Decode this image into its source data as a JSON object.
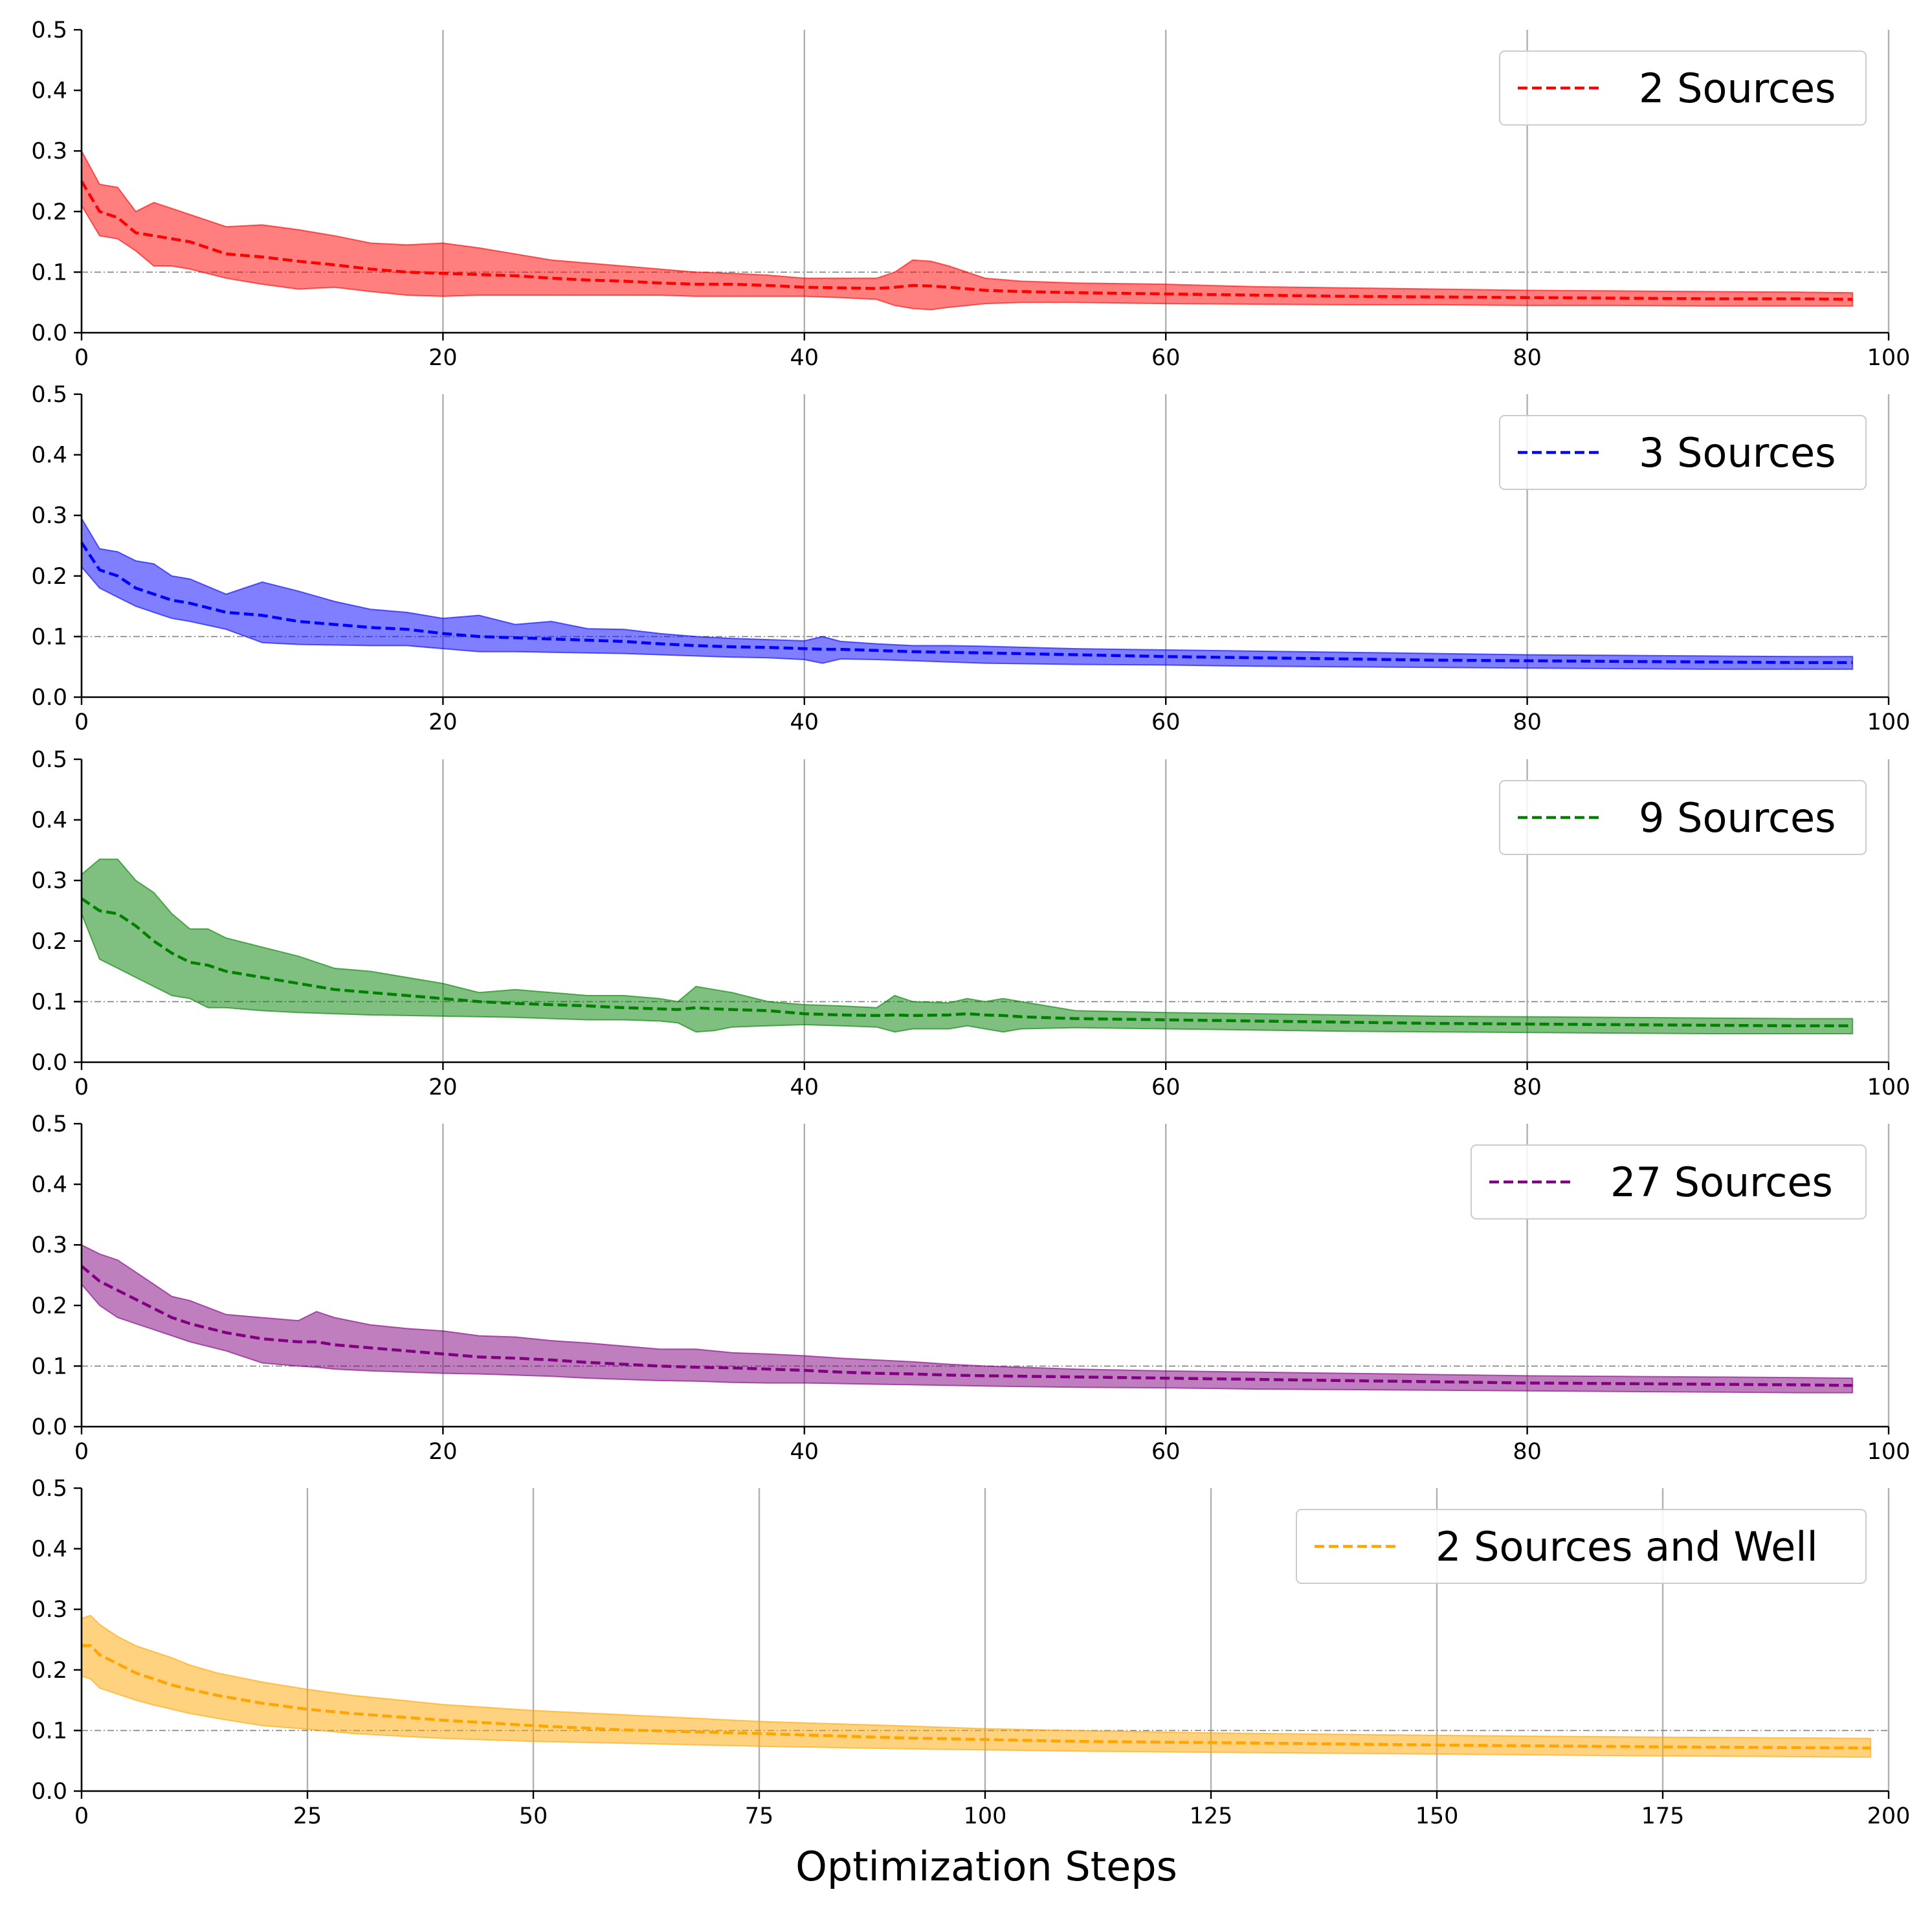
{
  "figure": {
    "xlabel": "Optimization Steps"
  },
  "reference_line": 0.1,
  "chart_data": [
    {
      "type": "line",
      "series_name": "2 Sources",
      "color": "#ff0000",
      "xlim": [
        0,
        100
      ],
      "ylim": [
        0,
        0.5
      ],
      "xticks": [
        0,
        20,
        40,
        60,
        80,
        100
      ],
      "yticks": [
        0.0,
        0.1,
        0.2,
        0.3,
        0.4,
        0.5
      ],
      "xtick_labels": [
        "0",
        "20",
        "40",
        "60",
        "80",
        "100"
      ],
      "ytick_labels": [
        "0.0",
        "0.1",
        "0.2",
        "0.3",
        "0.4",
        "0.5"
      ],
      "x": [
        0,
        1,
        2,
        3,
        4,
        5,
        6,
        8,
        10,
        12,
        14,
        16,
        18,
        20,
        22,
        24,
        26,
        28,
        30,
        32,
        34,
        36,
        38,
        40,
        42,
        44,
        45,
        46,
        47,
        48,
        50,
        52,
        55,
        60,
        65,
        70,
        75,
        80,
        85,
        90,
        95,
        98
      ],
      "mean": [
        0.25,
        0.2,
        0.19,
        0.165,
        0.16,
        0.155,
        0.15,
        0.13,
        0.125,
        0.118,
        0.112,
        0.105,
        0.1,
        0.098,
        0.096,
        0.094,
        0.09,
        0.087,
        0.085,
        0.082,
        0.08,
        0.08,
        0.078,
        0.075,
        0.074,
        0.073,
        0.075,
        0.078,
        0.077,
        0.075,
        0.07,
        0.068,
        0.066,
        0.064,
        0.062,
        0.06,
        0.059,
        0.058,
        0.057,
        0.056,
        0.056,
        0.055
      ],
      "upper": [
        0.3,
        0.245,
        0.24,
        0.2,
        0.215,
        0.205,
        0.195,
        0.175,
        0.178,
        0.17,
        0.16,
        0.148,
        0.145,
        0.148,
        0.14,
        0.13,
        0.12,
        0.115,
        0.11,
        0.105,
        0.1,
        0.098,
        0.095,
        0.09,
        0.09,
        0.09,
        0.1,
        0.12,
        0.118,
        0.11,
        0.09,
        0.085,
        0.082,
        0.08,
        0.076,
        0.074,
        0.072,
        0.07,
        0.069,
        0.068,
        0.067,
        0.066
      ],
      "lower": [
        0.21,
        0.16,
        0.155,
        0.135,
        0.11,
        0.11,
        0.105,
        0.09,
        0.08,
        0.072,
        0.075,
        0.068,
        0.062,
        0.06,
        0.062,
        0.062,
        0.062,
        0.062,
        0.062,
        0.062,
        0.06,
        0.06,
        0.06,
        0.06,
        0.058,
        0.055,
        0.045,
        0.04,
        0.038,
        0.042,
        0.048,
        0.05,
        0.05,
        0.048,
        0.047,
        0.046,
        0.046,
        0.045,
        0.045,
        0.044,
        0.044,
        0.044
      ]
    },
    {
      "type": "line",
      "series_name": "3 Sources",
      "color": "#0000ff",
      "xlim": [
        0,
        100
      ],
      "ylim": [
        0,
        0.5
      ],
      "xticks": [
        0,
        20,
        40,
        60,
        80,
        100
      ],
      "yticks": [
        0.0,
        0.1,
        0.2,
        0.3,
        0.4,
        0.5
      ],
      "xtick_labels": [
        "0",
        "20",
        "40",
        "60",
        "80",
        "100"
      ],
      "ytick_labels": [
        "0.0",
        "0.1",
        "0.2",
        "0.3",
        "0.4",
        "0.5"
      ],
      "x": [
        0,
        1,
        2,
        3,
        4,
        5,
        6,
        8,
        10,
        12,
        14,
        16,
        18,
        20,
        22,
        24,
        26,
        28,
        30,
        32,
        34,
        36,
        38,
        40,
        41,
        42,
        44,
        46,
        48,
        50,
        55,
        60,
        65,
        70,
        75,
        80,
        85,
        90,
        95,
        98
      ],
      "mean": [
        0.255,
        0.21,
        0.2,
        0.18,
        0.17,
        0.16,
        0.155,
        0.14,
        0.135,
        0.125,
        0.12,
        0.115,
        0.112,
        0.105,
        0.1,
        0.098,
        0.096,
        0.094,
        0.092,
        0.088,
        0.085,
        0.083,
        0.082,
        0.08,
        0.079,
        0.079,
        0.077,
        0.075,
        0.074,
        0.073,
        0.07,
        0.067,
        0.065,
        0.063,
        0.061,
        0.06,
        0.059,
        0.058,
        0.057,
        0.057
      ],
      "upper": [
        0.295,
        0.245,
        0.24,
        0.225,
        0.22,
        0.2,
        0.195,
        0.17,
        0.19,
        0.175,
        0.158,
        0.145,
        0.14,
        0.13,
        0.135,
        0.12,
        0.125,
        0.113,
        0.112,
        0.105,
        0.1,
        0.097,
        0.095,
        0.093,
        0.1,
        0.092,
        0.088,
        0.085,
        0.085,
        0.084,
        0.08,
        0.078,
        0.076,
        0.074,
        0.072,
        0.07,
        0.069,
        0.068,
        0.067,
        0.067
      ],
      "lower": [
        0.215,
        0.18,
        0.165,
        0.15,
        0.14,
        0.13,
        0.125,
        0.112,
        0.09,
        0.087,
        0.086,
        0.085,
        0.085,
        0.08,
        0.075,
        0.075,
        0.074,
        0.073,
        0.072,
        0.07,
        0.068,
        0.066,
        0.065,
        0.062,
        0.056,
        0.063,
        0.062,
        0.06,
        0.058,
        0.056,
        0.054,
        0.053,
        0.051,
        0.05,
        0.049,
        0.048,
        0.047,
        0.046,
        0.046,
        0.046
      ]
    },
    {
      "type": "line",
      "series_name": "9 Sources",
      "color": "#008000",
      "xlim": [
        0,
        100
      ],
      "ylim": [
        0,
        0.5
      ],
      "xticks": [
        0,
        20,
        40,
        60,
        80,
        100
      ],
      "yticks": [
        0.0,
        0.1,
        0.2,
        0.3,
        0.4,
        0.5
      ],
      "xtick_labels": [
        "0",
        "20",
        "40",
        "60",
        "80",
        "100"
      ],
      "ytick_labels": [
        "0.0",
        "0.1",
        "0.2",
        "0.3",
        "0.4",
        "0.5"
      ],
      "x": [
        0,
        1,
        2,
        3,
        4,
        5,
        6,
        7,
        8,
        10,
        12,
        14,
        16,
        18,
        20,
        22,
        24,
        26,
        28,
        30,
        32,
        33,
        34,
        35,
        36,
        38,
        40,
        42,
        44,
        45,
        46,
        48,
        49,
        50,
        51,
        52,
        55,
        60,
        65,
        70,
        75,
        80,
        85,
        90,
        95,
        98
      ],
      "mean": [
        0.27,
        0.25,
        0.245,
        0.225,
        0.2,
        0.18,
        0.165,
        0.16,
        0.15,
        0.14,
        0.13,
        0.12,
        0.115,
        0.11,
        0.105,
        0.1,
        0.097,
        0.095,
        0.093,
        0.09,
        0.088,
        0.087,
        0.09,
        0.088,
        0.087,
        0.085,
        0.08,
        0.078,
        0.077,
        0.078,
        0.077,
        0.078,
        0.08,
        0.078,
        0.077,
        0.075,
        0.072,
        0.07,
        0.068,
        0.066,
        0.064,
        0.063,
        0.062,
        0.061,
        0.06,
        0.06
      ],
      "upper": [
        0.31,
        0.335,
        0.335,
        0.3,
        0.28,
        0.245,
        0.22,
        0.22,
        0.205,
        0.19,
        0.175,
        0.155,
        0.15,
        0.14,
        0.13,
        0.115,
        0.12,
        0.115,
        0.11,
        0.11,
        0.105,
        0.1,
        0.125,
        0.12,
        0.115,
        0.1,
        0.095,
        0.093,
        0.09,
        0.11,
        0.1,
        0.098,
        0.105,
        0.1,
        0.105,
        0.1,
        0.085,
        0.082,
        0.08,
        0.078,
        0.076,
        0.075,
        0.074,
        0.073,
        0.072,
        0.072
      ],
      "lower": [
        0.245,
        0.17,
        0.155,
        0.14,
        0.125,
        0.11,
        0.105,
        0.09,
        0.09,
        0.085,
        0.082,
        0.08,
        0.078,
        0.077,
        0.076,
        0.075,
        0.074,
        0.072,
        0.07,
        0.07,
        0.068,
        0.065,
        0.05,
        0.052,
        0.058,
        0.06,
        0.062,
        0.06,
        0.058,
        0.05,
        0.055,
        0.055,
        0.06,
        0.055,
        0.05,
        0.055,
        0.057,
        0.055,
        0.053,
        0.051,
        0.05,
        0.049,
        0.048,
        0.047,
        0.047,
        0.047
      ]
    },
    {
      "type": "line",
      "series_name": "27 Sources",
      "color": "#800080",
      "xlim": [
        0,
        100
      ],
      "ylim": [
        0,
        0.5
      ],
      "xticks": [
        0,
        20,
        40,
        60,
        80,
        100
      ],
      "yticks": [
        0.0,
        0.1,
        0.2,
        0.3,
        0.4,
        0.5
      ],
      "xtick_labels": [
        "0",
        "20",
        "40",
        "60",
        "80",
        "100"
      ],
      "ytick_labels": [
        "0.0",
        "0.1",
        "0.2",
        "0.3",
        "0.4",
        "0.5"
      ],
      "x": [
        0,
        1,
        2,
        3,
        4,
        5,
        6,
        8,
        10,
        12,
        13,
        14,
        16,
        18,
        20,
        22,
        24,
        26,
        28,
        30,
        32,
        34,
        36,
        38,
        40,
        42,
        44,
        46,
        48,
        50,
        55,
        60,
        65,
        70,
        75,
        80,
        85,
        90,
        95,
        98
      ],
      "mean": [
        0.265,
        0.24,
        0.225,
        0.21,
        0.195,
        0.18,
        0.17,
        0.155,
        0.145,
        0.14,
        0.14,
        0.135,
        0.13,
        0.125,
        0.12,
        0.115,
        0.113,
        0.11,
        0.106,
        0.103,
        0.1,
        0.098,
        0.097,
        0.095,
        0.093,
        0.09,
        0.088,
        0.087,
        0.085,
        0.084,
        0.082,
        0.08,
        0.078,
        0.076,
        0.074,
        0.072,
        0.071,
        0.07,
        0.069,
        0.068
      ],
      "upper": [
        0.3,
        0.285,
        0.275,
        0.255,
        0.235,
        0.215,
        0.208,
        0.185,
        0.18,
        0.175,
        0.19,
        0.18,
        0.168,
        0.162,
        0.158,
        0.15,
        0.148,
        0.142,
        0.138,
        0.133,
        0.128,
        0.128,
        0.122,
        0.12,
        0.117,
        0.113,
        0.11,
        0.107,
        0.103,
        0.1,
        0.095,
        0.092,
        0.09,
        0.088,
        0.086,
        0.084,
        0.083,
        0.082,
        0.081,
        0.08
      ],
      "lower": [
        0.235,
        0.2,
        0.18,
        0.17,
        0.16,
        0.15,
        0.14,
        0.125,
        0.105,
        0.1,
        0.098,
        0.095,
        0.092,
        0.09,
        0.088,
        0.087,
        0.085,
        0.083,
        0.08,
        0.078,
        0.076,
        0.075,
        0.073,
        0.072,
        0.072,
        0.071,
        0.07,
        0.069,
        0.068,
        0.067,
        0.065,
        0.064,
        0.062,
        0.061,
        0.06,
        0.059,
        0.058,
        0.057,
        0.056,
        0.056
      ]
    },
    {
      "type": "line",
      "series_name": "2 Sources and Well",
      "color": "#ffa500",
      "xlim": [
        0,
        200
      ],
      "ylim": [
        0,
        0.5
      ],
      "xticks": [
        0,
        25,
        50,
        75,
        100,
        125,
        150,
        175,
        200
      ],
      "yticks": [
        0.0,
        0.1,
        0.2,
        0.3,
        0.4,
        0.5
      ],
      "xtick_labels": [
        "0",
        "25",
        "50",
        "75",
        "100",
        "125",
        "150",
        "175",
        "200"
      ],
      "ytick_labels": [
        "0.0",
        "0.1",
        "0.2",
        "0.3",
        "0.4",
        "0.5"
      ],
      "x": [
        0,
        1,
        2,
        4,
        6,
        8,
        10,
        12,
        15,
        20,
        25,
        30,
        40,
        50,
        60,
        75,
        90,
        100,
        110,
        125,
        150,
        175,
        198
      ],
      "mean": [
        0.24,
        0.24,
        0.225,
        0.21,
        0.195,
        0.185,
        0.175,
        0.168,
        0.158,
        0.145,
        0.135,
        0.128,
        0.117,
        0.108,
        0.101,
        0.095,
        0.088,
        0.085,
        0.082,
        0.08,
        0.076,
        0.073,
        0.071
      ],
      "upper": [
        0.285,
        0.29,
        0.275,
        0.255,
        0.24,
        0.23,
        0.22,
        0.208,
        0.195,
        0.18,
        0.168,
        0.158,
        0.143,
        0.133,
        0.126,
        0.115,
        0.108,
        0.103,
        0.1,
        0.096,
        0.092,
        0.089,
        0.087
      ],
      "lower": [
        0.19,
        0.185,
        0.17,
        0.16,
        0.15,
        0.142,
        0.135,
        0.128,
        0.12,
        0.108,
        0.102,
        0.095,
        0.087,
        0.082,
        0.079,
        0.074,
        0.07,
        0.068,
        0.066,
        0.064,
        0.061,
        0.058,
        0.056
      ]
    }
  ]
}
